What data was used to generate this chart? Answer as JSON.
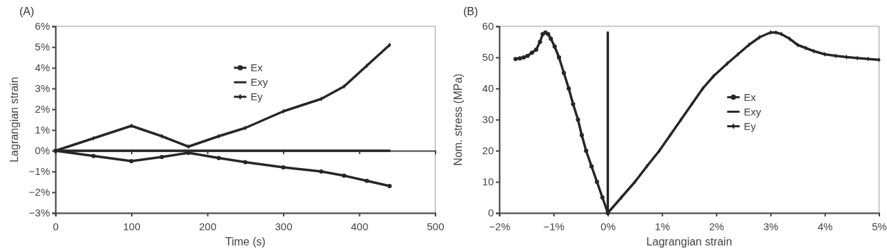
{
  "chart_data": [
    {
      "type": "line",
      "title": "(A)",
      "xlabel": "Time (s)",
      "ylabel": "Lagrangian strain",
      "xlim": [
        0,
        500
      ],
      "xticks": [
        0,
        100,
        200,
        300,
        400,
        500
      ],
      "ylim": [
        -3,
        6
      ],
      "yticks": [
        {
          "value": -3,
          "label": "−3%"
        },
        {
          "value": -2,
          "label": "−2%"
        },
        {
          "value": -1,
          "label": "−1%"
        },
        {
          "value": 0,
          "label": "0%"
        },
        {
          "value": 1,
          "label": "1%"
        },
        {
          "value": 2,
          "label": "2%"
        },
        {
          "value": 3,
          "label": "3%"
        },
        {
          "value": 4,
          "label": "4%"
        },
        {
          "value": 5,
          "label": "5%"
        },
        {
          "value": 6,
          "label": "6%"
        }
      ],
      "grid": false,
      "legend": "top",
      "series": [
        {
          "name": "Ex",
          "color": "#262626",
          "marker": "circle",
          "x": [
            0,
            50,
            100,
            140,
            175,
            215,
            250,
            300,
            350,
            380,
            410,
            440
          ],
          "values": [
            0,
            -0.25,
            -0.5,
            -0.3,
            -0.1,
            -0.35,
            -0.55,
            -0.8,
            -1.0,
            -1.2,
            -1.45,
            -1.7
          ]
        },
        {
          "name": "Exy",
          "color": "#262626",
          "x": [
            0,
            440
          ],
          "values": [
            0,
            0
          ]
        },
        {
          "name": "Ey",
          "color": "#262626",
          "marker": "diamond",
          "x": [
            0,
            50,
            100,
            140,
            175,
            215,
            250,
            300,
            350,
            380,
            410,
            440
          ],
          "values": [
            0,
            0.6,
            1.2,
            0.7,
            0.2,
            0.7,
            1.1,
            1.9,
            2.5,
            3.1,
            4.1,
            5.1
          ]
        }
      ]
    },
    {
      "type": "line",
      "title": "(B)",
      "xlabel": "Lagrangian strain",
      "ylabel": "Nom. stress (MPa)",
      "xlim": [
        -2,
        5
      ],
      "xticks": [
        {
          "value": -2,
          "label": "−2%"
        },
        {
          "value": -1,
          "label": "−1%"
        },
        {
          "value": 0,
          "label": "0%"
        },
        {
          "value": 1,
          "label": "1%"
        },
        {
          "value": 2,
          "label": "2%"
        },
        {
          "value": 3,
          "label": "3%"
        },
        {
          "value": 4,
          "label": "4%"
        },
        {
          "value": 5,
          "label": "5%"
        }
      ],
      "ylim": [
        0,
        60
      ],
      "yticks": [
        0,
        10,
        20,
        30,
        40,
        50,
        60
      ],
      "grid": false,
      "legend": "center",
      "series": [
        {
          "name": "Ex",
          "color": "#262626",
          "marker": "circle",
          "x": [
            0,
            -0.1,
            -0.2,
            -0.3,
            -0.4,
            -0.48,
            -0.55,
            -0.64,
            -0.72,
            -0.81,
            -0.9,
            -0.98,
            -1.05,
            -1.1,
            -1.15,
            -1.2,
            -1.25,
            -1.32,
            -1.4,
            -1.48,
            -1.55,
            -1.62,
            -1.7
          ],
          "values": [
            0,
            5,
            10,
            15,
            20,
            25,
            30,
            35,
            40,
            45,
            50,
            53.5,
            56,
            57.5,
            58,
            57.5,
            55,
            52.5,
            51.5,
            50.5,
            50,
            49.7,
            49.5
          ]
        },
        {
          "name": "Exy",
          "color": "#262626",
          "x": [
            0,
            0,
            0,
            0,
            0,
            0,
            0
          ],
          "values": [
            0,
            10,
            20,
            30,
            40,
            50,
            58
          ]
        },
        {
          "name": "Ey",
          "color": "#262626",
          "marker": "diamond",
          "x": [
            0,
            0.25,
            0.5,
            0.72,
            0.95,
            1.15,
            1.35,
            1.55,
            1.75,
            1.95,
            2.2,
            2.4,
            2.6,
            2.8,
            3.0,
            3.1,
            3.2,
            3.35,
            3.5,
            3.65,
            3.8,
            4.0,
            4.2,
            4.4,
            4.6,
            4.8,
            5.0
          ],
          "values": [
            0,
            5,
            10,
            15,
            20,
            25,
            30,
            35,
            40,
            44,
            48,
            51,
            54,
            56.5,
            58,
            58,
            57.5,
            56,
            54,
            53,
            52,
            51,
            50.5,
            50.1,
            49.8,
            49.5,
            49.2
          ]
        }
      ]
    }
  ]
}
